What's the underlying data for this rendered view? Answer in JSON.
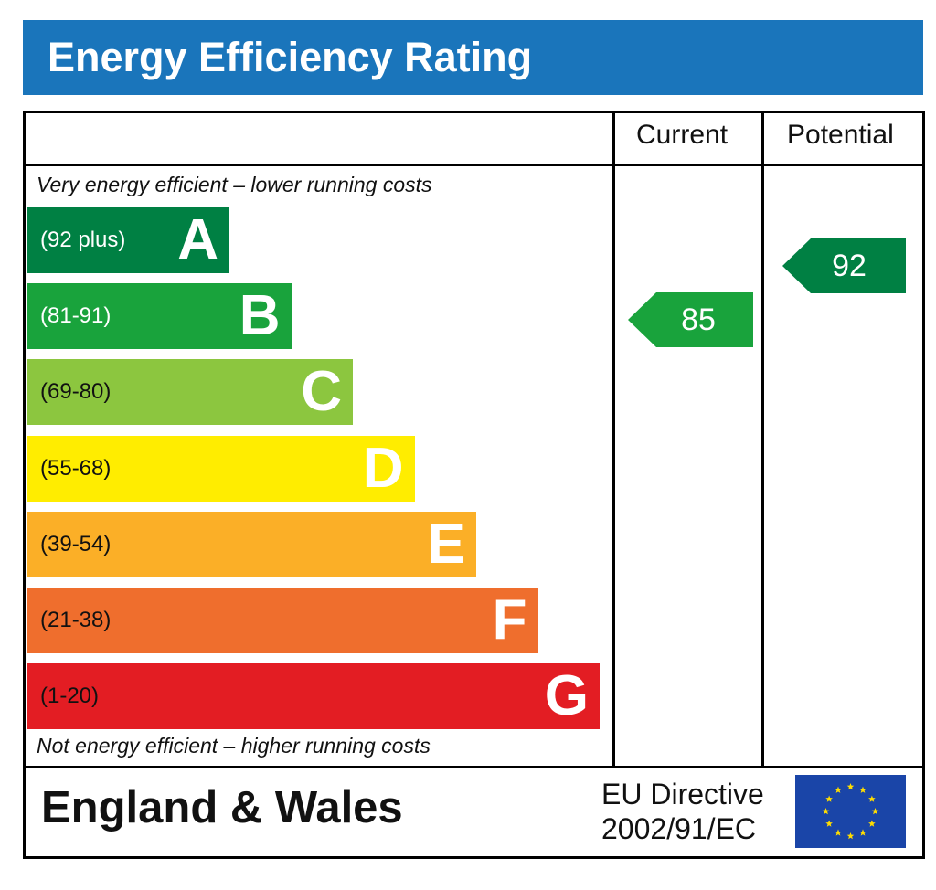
{
  "header": {
    "title": "Energy Efficiency Rating",
    "color": "#1a75bb"
  },
  "columns": {
    "current": "Current",
    "potential": "Potential"
  },
  "captions": {
    "top": "Very energy efficient – lower running costs",
    "bottom": "Not energy efficient – higher running costs"
  },
  "footer": {
    "region": "England & Wales",
    "directive_line1": "EU Directive",
    "directive_line2": "2002/91/EC",
    "flag_icon": "eu-flag-icon"
  },
  "chart_data": {
    "type": "bar",
    "categories": [
      "A",
      "B",
      "C",
      "D",
      "E",
      "F",
      "G"
    ],
    "bands": [
      {
        "letter": "A",
        "range": "(92 plus)",
        "color": "#008043",
        "range_color": "#ffffff"
      },
      {
        "letter": "B",
        "range": "(81-91)",
        "color": "#19a33c",
        "range_color": "#ffffff"
      },
      {
        "letter": "C",
        "range": "(69-80)",
        "color": "#8cc63f",
        "range_color": "#111111"
      },
      {
        "letter": "D",
        "range": "(55-68)",
        "color": "#ffed00",
        "range_color": "#111111"
      },
      {
        "letter": "E",
        "range": "(39-54)",
        "color": "#fbaf27",
        "range_color": "#111111"
      },
      {
        "letter": "F",
        "range": "(21-38)",
        "color": "#ef6e2d",
        "range_color": "#111111"
      },
      {
        "letter": "G",
        "range": "(1-20)",
        "color": "#e31d23",
        "range_color": "#111111"
      }
    ],
    "current": {
      "value": 85,
      "band": "B",
      "color": "#19a33c"
    },
    "potential": {
      "value": 92,
      "band": "A",
      "color": "#008043"
    }
  }
}
